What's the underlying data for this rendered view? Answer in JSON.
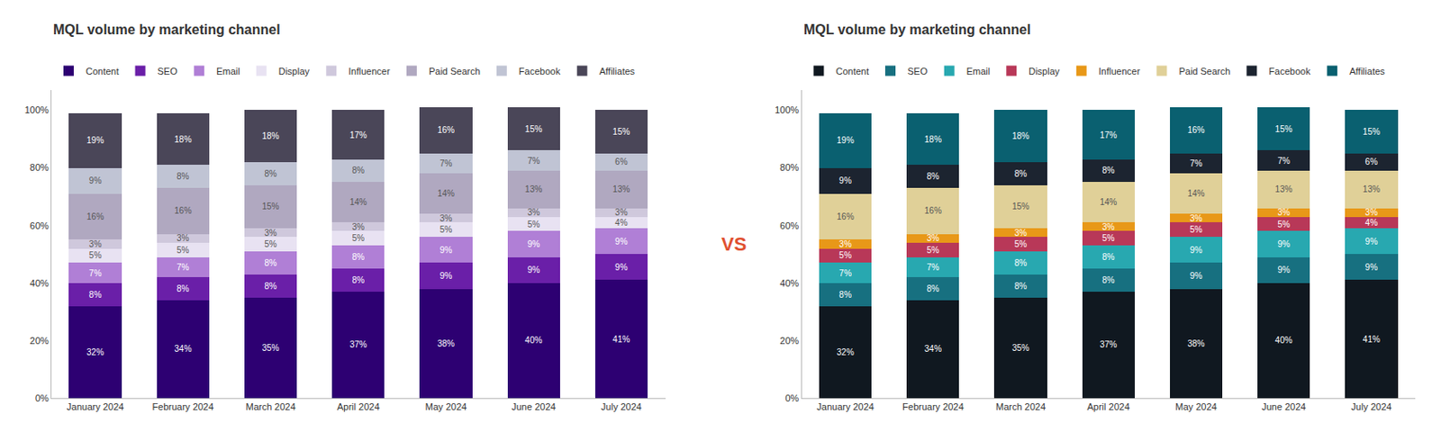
{
  "chart_data": [
    {
      "type": "bar",
      "stacked": true,
      "title": "MQL volume by marketing channel",
      "categories": [
        "January 2024",
        "February 2024",
        "March 2024",
        "April 2024",
        "May 2024",
        "June 2024",
        "July 2024"
      ],
      "series": [
        {
          "name": "Content",
          "color": "#2d0072",
          "values": [
            32,
            34,
            35,
            37,
            38,
            40,
            41
          ],
          "value_labels": [
            "32%",
            "34%",
            "35%",
            "37%",
            "38%",
            "40%",
            "41%"
          ]
        },
        {
          "name": "SEO",
          "color": "#6a1fa8",
          "values": [
            8,
            8,
            8,
            8,
            9,
            9,
            9
          ],
          "value_labels": [
            "8%",
            "8%",
            "8%",
            "8%",
            "9%",
            "9%",
            "9%"
          ]
        },
        {
          "name": "Email",
          "color": "#b07fd6",
          "values": [
            7,
            7,
            8,
            8,
            9,
            9,
            9
          ],
          "value_labels": [
            "7%",
            "7%",
            "8%",
            "8%",
            "9%",
            "9%",
            "9%"
          ]
        },
        {
          "name": "Display",
          "color": "#e8e2f2",
          "values": [
            5,
            5,
            5,
            5,
            5,
            5,
            4
          ],
          "value_labels": [
            "5%",
            "5%",
            "5%",
            "5%",
            "5%",
            "5%",
            "4%"
          ]
        },
        {
          "name": "Influencer",
          "color": "#cfc8dc",
          "values": [
            3,
            3,
            3,
            3,
            3,
            3,
            3
          ],
          "value_labels": [
            "3%",
            "3%",
            "3%",
            "3%",
            "3%",
            "3%",
            "3%"
          ]
        },
        {
          "name": "Paid Search",
          "color": "#b0a8c0",
          "values": [
            16,
            16,
            15,
            14,
            14,
            13,
            13
          ],
          "value_labels": [
            "16%",
            "16%",
            "15%",
            "14%",
            "14%",
            "13%",
            "13%"
          ]
        },
        {
          "name": "Facebook",
          "color": "#c0c4d4",
          "values": [
            9,
            8,
            8,
            8,
            7,
            7,
            6
          ],
          "value_labels": [
            "9%",
            "8%",
            "8%",
            "8%",
            "7%",
            "7%",
            "6%"
          ]
        },
        {
          "name": "Affiliates",
          "color": "#4a4658",
          "values": [
            19,
            18,
            18,
            17,
            16,
            15,
            15
          ],
          "value_labels": [
            "19%",
            "18%",
            "18%",
            "17%",
            "16%",
            "15%",
            "15%"
          ]
        }
      ],
      "ylim": [
        0,
        107
      ],
      "yticks": [
        {
          "value": 0,
          "label": "0%"
        },
        {
          "value": 20,
          "label": "20%"
        },
        {
          "value": 40,
          "label": "40%"
        },
        {
          "value": 60,
          "label": "60%"
        },
        {
          "value": 80,
          "label": "80%"
        },
        {
          "value": 100,
          "label": "100%"
        }
      ],
      "data_labels": true,
      "grid": false,
      "legend": "top"
    },
    {
      "type": "bar",
      "stacked": true,
      "title": "MQL volume by marketing channel",
      "categories": [
        "January 2024",
        "February 2024",
        "March 2024",
        "April 2024",
        "May 2024",
        "June 2024",
        "July 2024"
      ],
      "series": [
        {
          "name": "Content",
          "color": "#101820",
          "values": [
            32,
            34,
            35,
            37,
            38,
            40,
            41
          ],
          "value_labels": [
            "32%",
            "34%",
            "35%",
            "37%",
            "38%",
            "40%",
            "41%"
          ]
        },
        {
          "name": "SEO",
          "color": "#177080",
          "values": [
            8,
            8,
            8,
            8,
            9,
            9,
            9
          ],
          "value_labels": [
            "8%",
            "8%",
            "8%",
            "8%",
            "9%",
            "9%",
            "9%"
          ]
        },
        {
          "name": "Email",
          "color": "#28a8b0",
          "values": [
            7,
            7,
            8,
            8,
            9,
            9,
            9
          ],
          "value_labels": [
            "7%",
            "7%",
            "8%",
            "8%",
            "9%",
            "9%",
            "9%"
          ]
        },
        {
          "name": "Display",
          "color": "#b83858",
          "values": [
            5,
            5,
            5,
            5,
            5,
            5,
            4
          ],
          "value_labels": [
            "5%",
            "5%",
            "5%",
            "5%",
            "5%",
            "5%",
            "4%"
          ]
        },
        {
          "name": "Influencer",
          "color": "#e89818",
          "values": [
            3,
            3,
            3,
            3,
            3,
            3,
            3
          ],
          "value_labels": [
            "3%",
            "3%",
            "3%",
            "3%",
            "3%",
            "3%",
            "3%"
          ]
        },
        {
          "name": "Paid Search",
          "color": "#e0d098",
          "values": [
            16,
            16,
            15,
            14,
            14,
            13,
            13
          ],
          "value_labels": [
            "16%",
            "16%",
            "15%",
            "14%",
            "14%",
            "13%",
            "13%"
          ]
        },
        {
          "name": "Facebook",
          "color": "#1c2430",
          "values": [
            9,
            8,
            8,
            8,
            7,
            7,
            6
          ],
          "value_labels": [
            "9%",
            "8%",
            "8%",
            "8%",
            "7%",
            "7%",
            "6%"
          ]
        },
        {
          "name": "Affiliates",
          "color": "#0a6070",
          "values": [
            19,
            18,
            18,
            17,
            16,
            15,
            15
          ],
          "value_labels": [
            "19%",
            "18%",
            "18%",
            "17%",
            "16%",
            "15%",
            "15%"
          ]
        }
      ],
      "ylim": [
        0,
        107
      ],
      "yticks": [
        {
          "value": 0,
          "label": "0%"
        },
        {
          "value": 20,
          "label": "20%"
        },
        {
          "value": 40,
          "label": "40%"
        },
        {
          "value": 60,
          "label": "60%"
        },
        {
          "value": 80,
          "label": "80%"
        },
        {
          "value": 100,
          "label": "100%"
        }
      ],
      "data_labels": true,
      "grid": false,
      "legend": "top"
    }
  ],
  "annotations": [
    {
      "text": "VS",
      "color": "#e05030"
    }
  ]
}
